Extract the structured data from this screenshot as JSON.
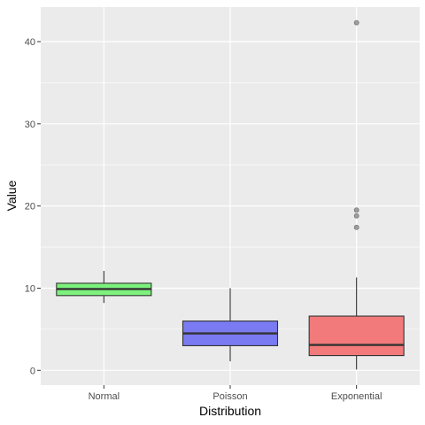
{
  "chart_data": {
    "type": "boxplot",
    "title": "",
    "xlabel": "Distribution",
    "ylabel": "Value",
    "ylim": [
      -1.8,
      44.2
    ],
    "yticks": [
      0,
      10,
      20,
      30,
      40
    ],
    "grid": true,
    "legend": "none",
    "categories": [
      "Normal",
      "Poisson",
      "Exponential"
    ],
    "boxes": [
      {
        "category": "Normal",
        "whisker_low": 8.2,
        "q1": 9.1,
        "median": 9.9,
        "q3": 10.6,
        "whisker_high": 12.1,
        "outliers": [],
        "fill": "#7cf17c"
      },
      {
        "category": "Poisson",
        "whisker_low": 1.1,
        "q1": 3.0,
        "median": 4.5,
        "q3": 6.0,
        "whisker_high": 10.0,
        "outliers": [],
        "fill": "#7a7af2"
      },
      {
        "category": "Exponential",
        "whisker_low": 0.1,
        "q1": 1.8,
        "median": 3.1,
        "q3": 6.6,
        "whisker_high": 11.3,
        "outliers": [
          17.4,
          18.8,
          19.5,
          42.3
        ],
        "fill": "#f27a7a"
      }
    ],
    "colors": {
      "panel": "#ebebeb",
      "grid_major": "#ffffff",
      "box_stroke": "#333333",
      "outlier": "#808080"
    }
  }
}
